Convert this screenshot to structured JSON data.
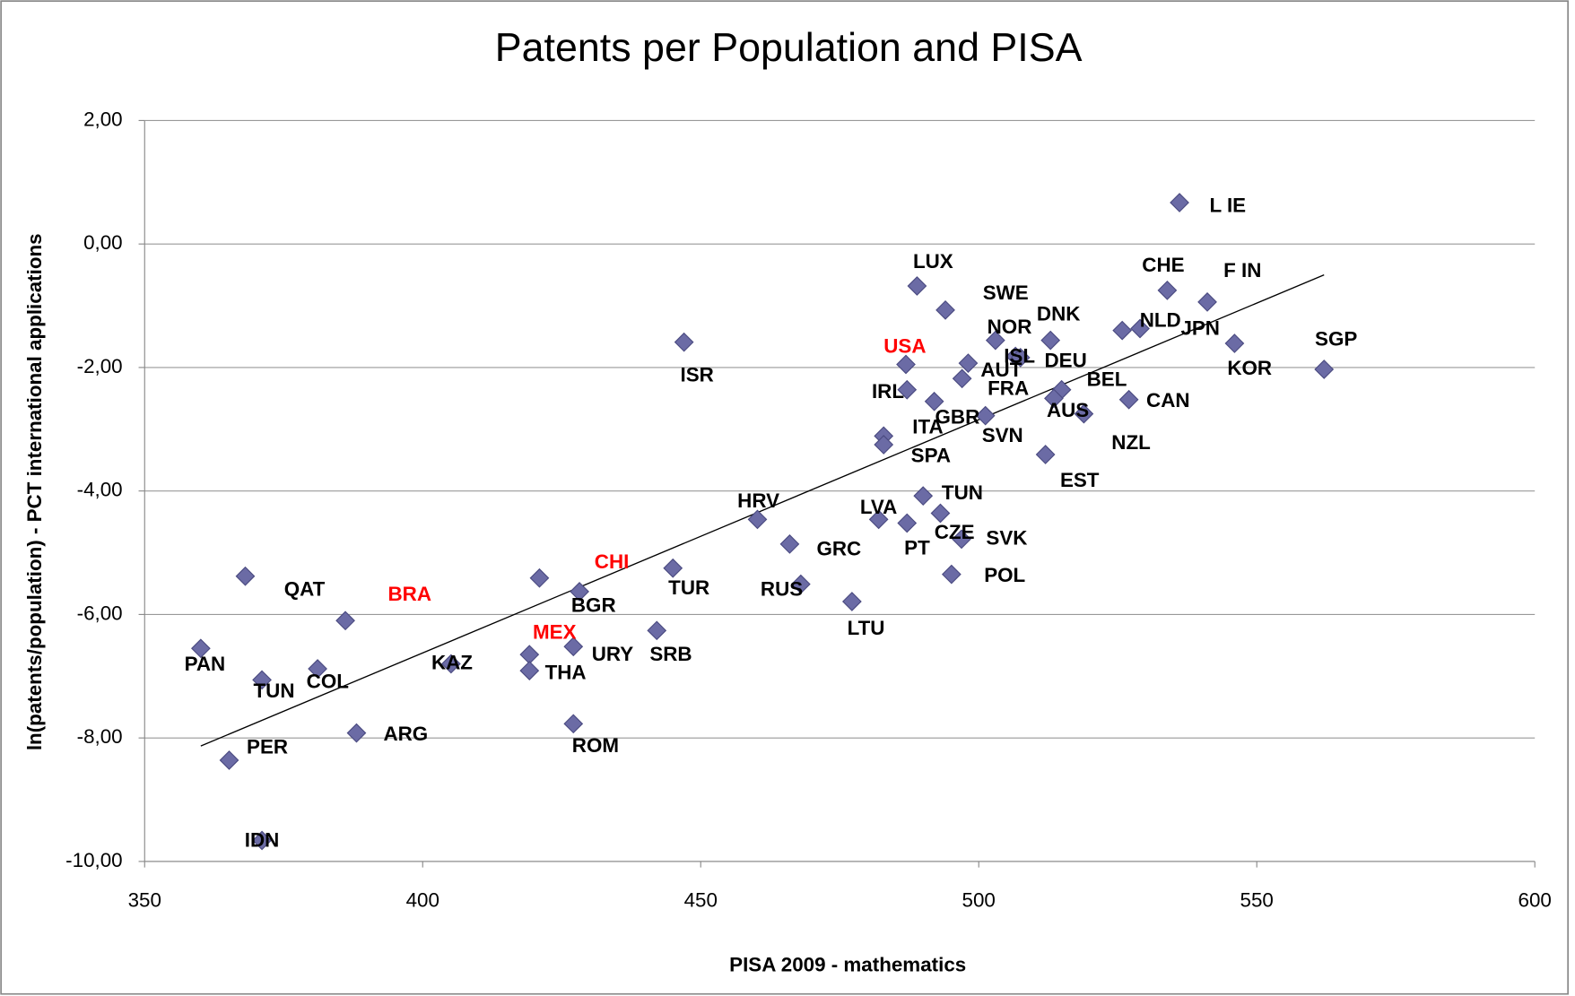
{
  "chart_data": {
    "type": "scatter",
    "title": "Patents per Population and PISA",
    "x_label": "PISA 2009 - mathematics",
    "y_label": "ln(patents/population) - PCT international applications",
    "xlim": [
      350,
      600
    ],
    "xticks": [
      350,
      400,
      450,
      500,
      550,
      600
    ],
    "ylim": [
      -10,
      2
    ],
    "yticks": [
      {
        "value": -10,
        "label": "-10,00"
      },
      {
        "value": -8,
        "label": "-8,00"
      },
      {
        "value": -6,
        "label": "-6,00"
      },
      {
        "value": -4,
        "label": "-4,00"
      },
      {
        "value": -2,
        "label": "-2,00"
      },
      {
        "value": 0,
        "label": "0,00"
      },
      {
        "value": 2,
        "label": "2,00"
      }
    ],
    "grid": true,
    "highlighted": [
      "USA",
      "CHI",
      "BRA",
      "MEX"
    ],
    "highlight_color": "#ff0000",
    "series": [
      {
        "color": "#6b6ba5",
        "labels": [
          "L IE",
          "CHE",
          "F IN",
          "SGP",
          "KOR",
          "NLD",
          "JPN",
          "CAN",
          "NZL",
          "BEL",
          "AUS",
          "DNK",
          "NOR",
          "ISL",
          "DEU",
          "SWE",
          "LUX",
          "USA",
          "AUT",
          "FRA",
          "IRL",
          "GBR",
          "SVN",
          "ITA",
          "SPA",
          "EST",
          "TUN",
          "LVA",
          "PT",
          "CZE",
          "SVK",
          "POL",
          "LTU",
          "RUS",
          "GRC",
          "HRV",
          "ISR",
          "TUR",
          "SRB",
          "BGR",
          "CHI",
          "URY",
          "ROM",
          "MEX",
          "THA",
          "KAZ",
          "ARG",
          "BRA",
          "QAT",
          "COL",
          "TUN",
          "PAN",
          "PER",
          "IDN"
        ],
        "x": [
          536.1,
          533.9,
          541.1,
          562.1,
          546.0,
          525.8,
          529.0,
          527.0,
          518.9,
          514.9,
          513.5,
          512.9,
          503.0,
          506.6,
          507.5,
          494.0,
          488.9,
          486.9,
          498.1,
          497.0,
          487.1,
          492.0,
          501.2,
          482.9,
          482.9,
          512.0,
          490.0,
          482.0,
          487.1,
          493.1,
          496.9,
          495.1,
          477.2,
          468.0,
          466.0,
          460.2,
          447.0,
          445.0,
          442.1,
          428.2,
          421.0,
          427.1,
          427.1,
          419.2,
          419.2,
          405.1,
          388.1,
          386.1,
          368.1,
          381.1,
          371.1,
          360.1,
          365.2,
          371.1
        ],
        "values": [
          0.67,
          -0.75,
          -0.94,
          -2.03,
          -1.61,
          -1.4,
          -1.37,
          -2.52,
          -2.75,
          -2.36,
          -2.5,
          -1.56,
          -1.56,
          -1.82,
          -1.84,
          -1.07,
          -0.68,
          -1.95,
          -1.93,
          -2.18,
          -2.36,
          -2.55,
          -2.78,
          -3.11,
          -3.25,
          -3.41,
          -4.08,
          -4.46,
          -4.52,
          -4.36,
          -4.78,
          -5.35,
          -5.79,
          -5.51,
          -4.86,
          -4.46,
          -1.59,
          -5.25,
          -6.26,
          -5.63,
          -5.41,
          -6.52,
          -7.77,
          -6.65,
          -6.91,
          -6.8,
          -7.92,
          -6.1,
          -5.38,
          -6.88,
          -7.06,
          -6.55,
          -8.36,
          -9.66
        ]
      }
    ],
    "trendline": {
      "x": [
        360.1,
        562.1
      ],
      "y": [
        -8.13,
        -0.5
      ],
      "color": "#000000"
    }
  }
}
